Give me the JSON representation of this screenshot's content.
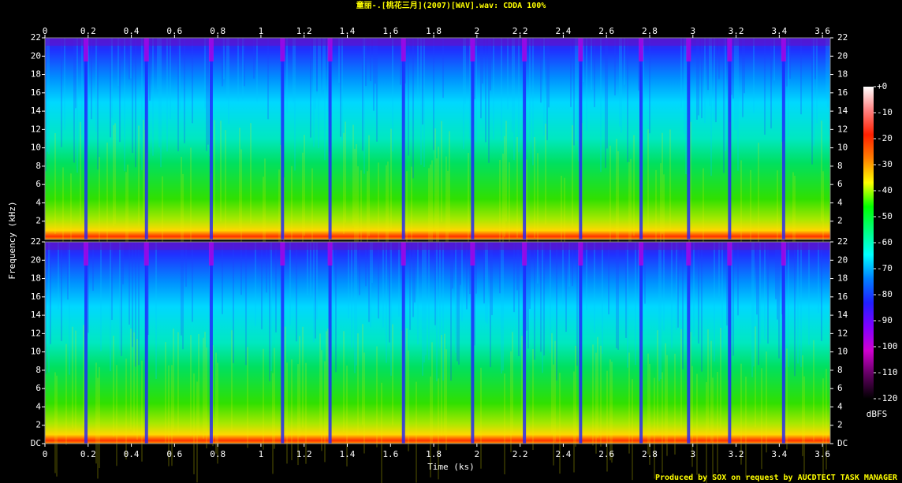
{
  "chart_data": {
    "type": "spectrogram",
    "title": "童丽-.[桃花三月](2007)[WAV].wav: CDDA 100%",
    "footer": "Produced by SOX on request by AUCDTECT TASK MANAGER",
    "x_label": "Time (ks)",
    "y_label": "Frequency (kHz)",
    "xlim": [
      0,
      3.636
    ],
    "xticks": [
      0,
      0.2,
      0.4,
      0.6,
      0.8,
      1,
      1.2,
      1.4,
      1.6,
      1.8,
      2,
      2.2,
      2.4,
      2.6,
      2.8,
      3,
      3.2,
      3.4,
      3.6
    ],
    "ylim": [
      0,
      22
    ],
    "yticks": [
      {
        "value": 0,
        "label": "DC"
      },
      2,
      4,
      6,
      8,
      10,
      12,
      14,
      16,
      18,
      20,
      22
    ],
    "colorbar_label": "dBFS",
    "zlim": [
      -120,
      0
    ],
    "zticks": [
      {
        "value": 0,
        "label": "+0"
      },
      -10,
      -20,
      -30,
      -40,
      -50,
      -60,
      -70,
      -80,
      -90,
      -100,
      -110,
      -120
    ],
    "colormap": [
      "#000000",
      "#600060",
      "#d000d0",
      "#8000ff",
      "#2020ff",
      "#0080ff",
      "#00ffff",
      "#00ff80",
      "#00ff00",
      "#ffff00",
      "#ff8000",
      "#ff2000",
      "#ff8080",
      "#ffffff"
    ]
  }
}
